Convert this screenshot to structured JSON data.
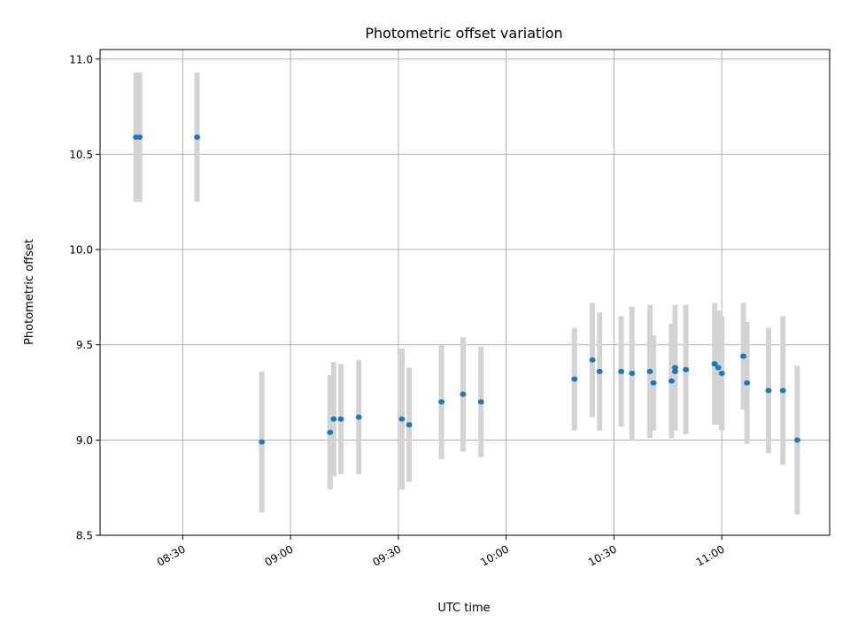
{
  "chart_data": {
    "type": "scatter",
    "title": "Photometric offset variation",
    "xlabel": "UTC time",
    "ylabel": "Photometric offset",
    "xlim": [
      "08:07",
      "11:30"
    ],
    "ylim": [
      8.5,
      11.05
    ],
    "xticks": [
      "08:30",
      "09:00",
      "09:30",
      "10:00",
      "10:30",
      "11:00"
    ],
    "yticks": [
      "8.5",
      "9.0",
      "9.5",
      "10.0",
      "10.5",
      "11.0"
    ],
    "grid": true,
    "colors": {
      "marker": "#1f77b4",
      "errorbar": "#d3d3d3",
      "grid": "#b0b0b0",
      "axes": "#000000"
    },
    "points": [
      {
        "t": "08:17",
        "y": 10.59,
        "err": 0.34
      },
      {
        "t": "08:18",
        "y": 10.59,
        "err": 0.34
      },
      {
        "t": "08:34",
        "y": 10.59,
        "err": 0.34
      },
      {
        "t": "08:52",
        "y": 8.99,
        "err": 0.37
      },
      {
        "t": "09:11",
        "y": 9.04,
        "err": 0.3
      },
      {
        "t": "09:12",
        "y": 9.11,
        "err": 0.3
      },
      {
        "t": "09:14",
        "y": 9.11,
        "err": 0.29
      },
      {
        "t": "09:19",
        "y": 9.12,
        "err": 0.3
      },
      {
        "t": "09:31",
        "y": 9.11,
        "err": 0.37
      },
      {
        "t": "09:33",
        "y": 9.08,
        "err": 0.3
      },
      {
        "t": "09:42",
        "y": 9.2,
        "err": 0.3
      },
      {
        "t": "09:48",
        "y": 9.24,
        "err": 0.3
      },
      {
        "t": "09:53",
        "y": 9.2,
        "err": 0.29
      },
      {
        "t": "10:19",
        "y": 9.32,
        "err": 0.27
      },
      {
        "t": "10:24",
        "y": 9.42,
        "err": 0.3
      },
      {
        "t": "10:26",
        "y": 9.36,
        "err": 0.31
      },
      {
        "t": "10:32",
        "y": 9.36,
        "err": 0.29
      },
      {
        "t": "10:35",
        "y": 9.35,
        "err": 0.35
      },
      {
        "t": "10:40",
        "y": 9.36,
        "err": 0.35
      },
      {
        "t": "10:41",
        "y": 9.3,
        "err": 0.25
      },
      {
        "t": "10:46",
        "y": 9.31,
        "err": 0.3
      },
      {
        "t": "10:47",
        "y": 9.36,
        "err": 0.29
      },
      {
        "t": "10:47",
        "y": 9.38,
        "err": 0.33
      },
      {
        "t": "10:50",
        "y": 9.37,
        "err": 0.34
      },
      {
        "t": "10:58",
        "y": 9.4,
        "err": 0.32
      },
      {
        "t": "10:59",
        "y": 9.38,
        "err": 0.3
      },
      {
        "t": "11:00",
        "y": 9.35,
        "err": 0.3
      },
      {
        "t": "11:06",
        "y": 9.44,
        "err": 0.28
      },
      {
        "t": "11:07",
        "y": 9.3,
        "err": 0.32
      },
      {
        "t": "11:13",
        "y": 9.26,
        "err": 0.33
      },
      {
        "t": "11:17",
        "y": 9.26,
        "err": 0.39
      },
      {
        "t": "11:21",
        "y": 9.0,
        "err": 0.39
      }
    ]
  }
}
